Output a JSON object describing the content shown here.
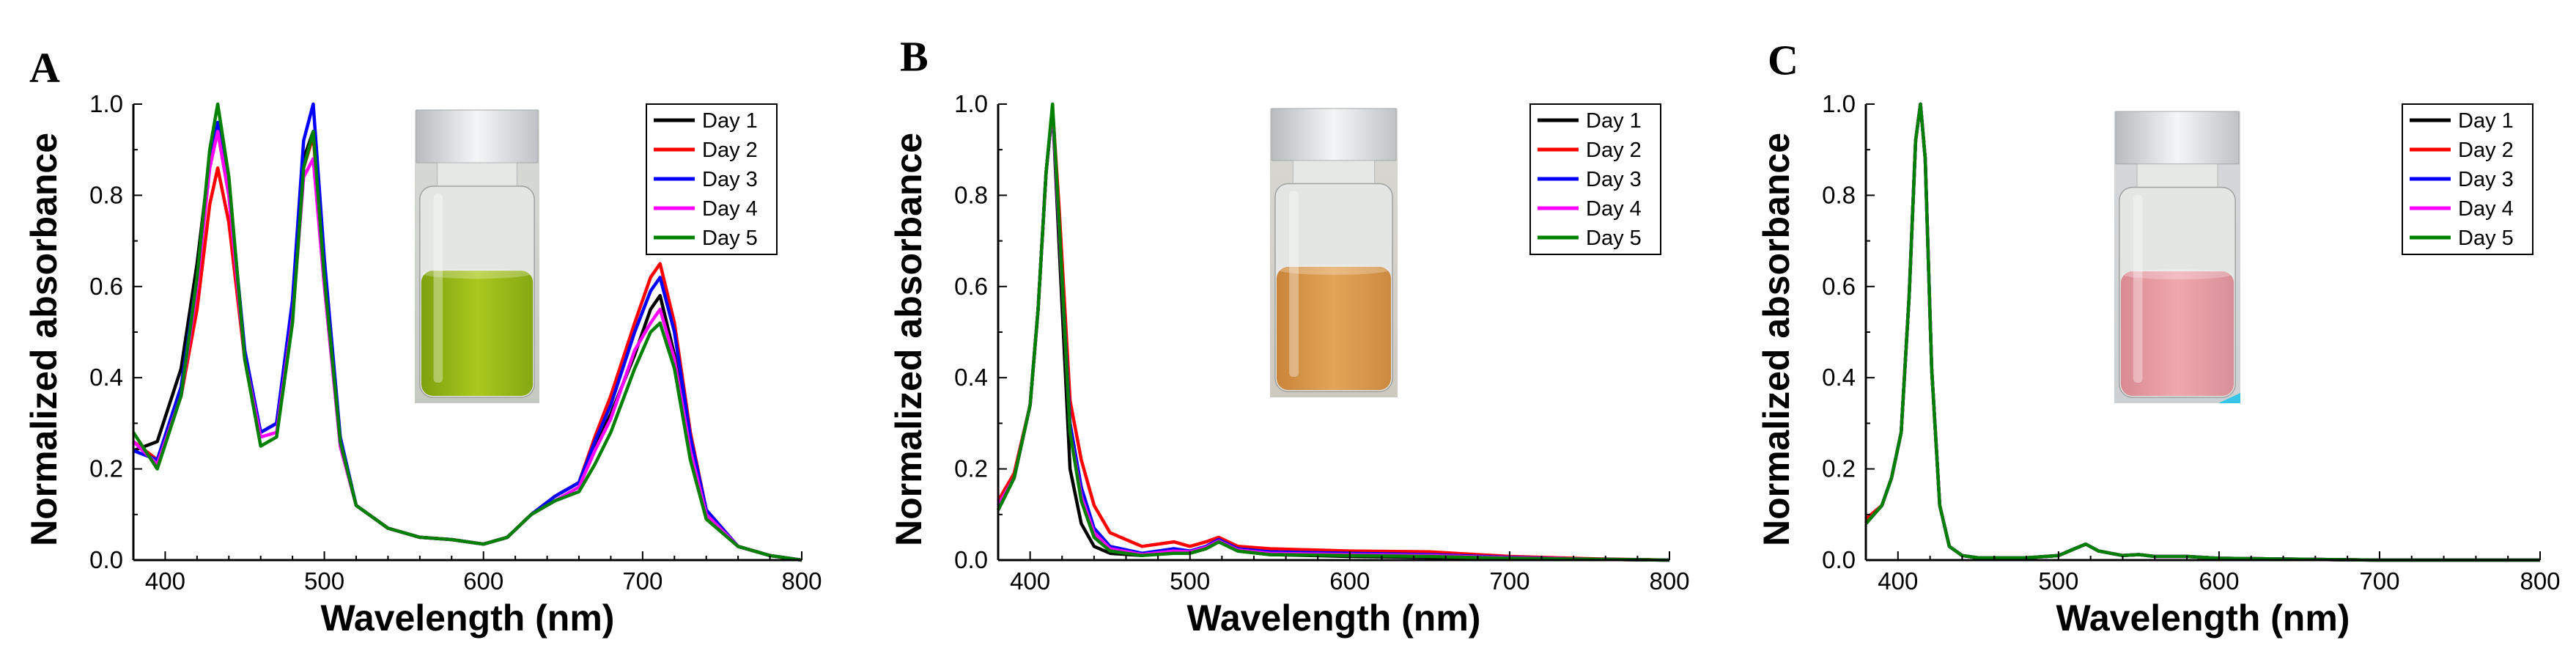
{
  "figure": {
    "colors": {
      "Day 1": "#000000",
      "Day 2": "#ff0000",
      "Day 3": "#0000ff",
      "Day 4": "#ff00ff",
      "Day 5": "#008000"
    }
  },
  "chart_data": [
    {
      "panel": "A",
      "type": "line",
      "xlabel": "Wavelength (nm)",
      "ylabel": "Normalized absorbance",
      "xlim": [
        380,
        800
      ],
      "ylim": [
        0.0,
        1.0
      ],
      "xticks": [
        400,
        500,
        600,
        700,
        800
      ],
      "yticks": [
        0.0,
        0.2,
        0.4,
        0.6,
        0.8,
        1.0
      ],
      "legend_position": "top-right",
      "inset": "vial-green",
      "series": [
        {
          "name": "Day 1",
          "x": [
            380,
            395,
            410,
            420,
            428,
            433,
            440,
            450,
            460,
            470,
            480,
            487,
            493,
            500,
            510,
            520,
            540,
            560,
            580,
            600,
            615,
            630,
            645,
            660,
            670,
            680,
            695,
            705,
            711,
            720,
            730,
            740,
            760,
            780,
            800
          ],
          "y": [
            0.24,
            0.26,
            0.42,
            0.65,
            0.88,
            0.94,
            0.8,
            0.45,
            0.28,
            0.3,
            0.55,
            0.88,
            0.94,
            0.62,
            0.26,
            0.12,
            0.07,
            0.05,
            0.045,
            0.035,
            0.05,
            0.1,
            0.14,
            0.17,
            0.25,
            0.32,
            0.45,
            0.55,
            0.58,
            0.45,
            0.24,
            0.1,
            0.03,
            0.01,
            0.0
          ]
        },
        {
          "name": "Day 2",
          "x": [
            380,
            395,
            410,
            420,
            428,
            433,
            440,
            450,
            460,
            470,
            480,
            487,
            493,
            500,
            510,
            520,
            540,
            560,
            580,
            600,
            615,
            630,
            645,
            660,
            670,
            680,
            695,
            705,
            711,
            720,
            730,
            740,
            760,
            780,
            800
          ],
          "y": [
            0.26,
            0.22,
            0.36,
            0.55,
            0.78,
            0.86,
            0.74,
            0.44,
            0.28,
            0.3,
            0.55,
            0.86,
            0.93,
            0.62,
            0.26,
            0.12,
            0.07,
            0.05,
            0.045,
            0.035,
            0.05,
            0.1,
            0.14,
            0.17,
            0.27,
            0.36,
            0.52,
            0.62,
            0.65,
            0.52,
            0.28,
            0.11,
            0.03,
            0.01,
            0.0
          ]
        },
        {
          "name": "Day 3",
          "x": [
            380,
            395,
            410,
            420,
            428,
            433,
            440,
            450,
            460,
            470,
            480,
            487,
            493,
            500,
            510,
            520,
            540,
            560,
            580,
            600,
            615,
            630,
            645,
            660,
            670,
            680,
            695,
            705,
            711,
            720,
            730,
            740,
            760,
            780,
            800
          ],
          "y": [
            0.24,
            0.22,
            0.38,
            0.62,
            0.88,
            0.96,
            0.82,
            0.46,
            0.28,
            0.3,
            0.57,
            0.92,
            1.0,
            0.66,
            0.27,
            0.12,
            0.07,
            0.05,
            0.045,
            0.035,
            0.05,
            0.1,
            0.14,
            0.17,
            0.26,
            0.34,
            0.5,
            0.59,
            0.62,
            0.5,
            0.27,
            0.11,
            0.03,
            0.01,
            0.0
          ]
        },
        {
          "name": "Day 4",
          "x": [
            380,
            395,
            410,
            420,
            428,
            433,
            440,
            450,
            460,
            470,
            480,
            487,
            493,
            500,
            510,
            520,
            540,
            560,
            580,
            600,
            615,
            630,
            645,
            660,
            670,
            680,
            695,
            705,
            711,
            720,
            730,
            740,
            760,
            780,
            800
          ],
          "y": [
            0.26,
            0.21,
            0.36,
            0.6,
            0.86,
            0.94,
            0.8,
            0.44,
            0.27,
            0.28,
            0.53,
            0.84,
            0.88,
            0.6,
            0.25,
            0.12,
            0.07,
            0.05,
            0.045,
            0.035,
            0.05,
            0.1,
            0.13,
            0.16,
            0.24,
            0.31,
            0.46,
            0.52,
            0.55,
            0.44,
            0.24,
            0.1,
            0.03,
            0.01,
            0.0
          ]
        },
        {
          "name": "Day 5",
          "x": [
            380,
            395,
            410,
            420,
            428,
            433,
            440,
            450,
            460,
            470,
            480,
            487,
            493,
            500,
            510,
            520,
            540,
            560,
            580,
            600,
            615,
            630,
            645,
            660,
            670,
            680,
            695,
            705,
            711,
            720,
            730,
            740,
            760,
            780,
            800
          ],
          "y": [
            0.28,
            0.2,
            0.36,
            0.62,
            0.9,
            1.0,
            0.84,
            0.44,
            0.25,
            0.27,
            0.52,
            0.86,
            0.94,
            0.62,
            0.26,
            0.12,
            0.07,
            0.05,
            0.045,
            0.035,
            0.05,
            0.1,
            0.13,
            0.15,
            0.21,
            0.28,
            0.42,
            0.5,
            0.52,
            0.42,
            0.22,
            0.09,
            0.03,
            0.01,
            0.0
          ]
        }
      ]
    },
    {
      "panel": "B",
      "type": "line",
      "xlabel": "Wavelength (nm)",
      "ylabel": "Normalized absorbance",
      "xlim": [
        380,
        800
      ],
      "ylim": [
        0.0,
        1.0
      ],
      "xticks": [
        400,
        500,
        600,
        700,
        800
      ],
      "yticks": [
        0.0,
        0.2,
        0.4,
        0.6,
        0.8,
        1.0
      ],
      "legend_position": "top-right",
      "inset": "vial-orange",
      "series": [
        {
          "name": "Day 1",
          "x": [
            380,
            390,
            400,
            405,
            410,
            414,
            418,
            425,
            432,
            440,
            450,
            470,
            490,
            500,
            510,
            518,
            530,
            550,
            600,
            650,
            700,
            750,
            800
          ],
          "y": [
            0.11,
            0.18,
            0.34,
            0.55,
            0.85,
            0.99,
            0.7,
            0.2,
            0.08,
            0.03,
            0.015,
            0.01,
            0.02,
            0.015,
            0.025,
            0.04,
            0.02,
            0.012,
            0.008,
            0.006,
            0.004,
            0.002,
            0.0
          ]
        },
        {
          "name": "Day 2",
          "x": [
            380,
            390,
            400,
            405,
            410,
            414,
            418,
            425,
            432,
            440,
            450,
            470,
            490,
            500,
            510,
            518,
            530,
            550,
            600,
            650,
            700,
            750,
            800
          ],
          "y": [
            0.13,
            0.19,
            0.34,
            0.55,
            0.85,
            0.99,
            0.78,
            0.35,
            0.22,
            0.12,
            0.06,
            0.03,
            0.04,
            0.03,
            0.04,
            0.05,
            0.03,
            0.025,
            0.02,
            0.018,
            0.008,
            0.003,
            0.0
          ]
        },
        {
          "name": "Day 3",
          "x": [
            380,
            390,
            400,
            405,
            410,
            414,
            418,
            425,
            432,
            440,
            450,
            470,
            490,
            500,
            510,
            518,
            530,
            550,
            600,
            650,
            700,
            750,
            800
          ],
          "y": [
            0.12,
            0.18,
            0.34,
            0.55,
            0.85,
            0.99,
            0.74,
            0.3,
            0.16,
            0.07,
            0.03,
            0.015,
            0.025,
            0.02,
            0.03,
            0.045,
            0.025,
            0.018,
            0.015,
            0.012,
            0.006,
            0.002,
            0.0
          ]
        },
        {
          "name": "Day 4",
          "x": [
            380,
            390,
            400,
            405,
            410,
            414,
            418,
            425,
            432,
            440,
            450,
            470,
            490,
            500,
            510,
            518,
            530,
            550,
            600,
            650,
            700,
            750,
            800
          ],
          "y": [
            0.12,
            0.18,
            0.34,
            0.55,
            0.85,
            0.99,
            0.74,
            0.28,
            0.14,
            0.06,
            0.025,
            0.012,
            0.02,
            0.018,
            0.028,
            0.042,
            0.022,
            0.015,
            0.012,
            0.01,
            0.005,
            0.002,
            0.0
          ]
        },
        {
          "name": "Day 5",
          "x": [
            380,
            390,
            400,
            405,
            410,
            414,
            418,
            425,
            432,
            440,
            450,
            470,
            490,
            500,
            510,
            518,
            530,
            550,
            600,
            650,
            700,
            750,
            800
          ],
          "y": [
            0.11,
            0.18,
            0.34,
            0.55,
            0.85,
            1.0,
            0.75,
            0.28,
            0.13,
            0.05,
            0.02,
            0.01,
            0.015,
            0.015,
            0.025,
            0.04,
            0.02,
            0.012,
            0.01,
            0.008,
            0.004,
            0.002,
            0.0
          ]
        }
      ]
    },
    {
      "panel": "C",
      "type": "line",
      "xlabel": "Wavelength (nm)",
      "ylabel": "Normalized absorbance",
      "xlim": [
        380,
        800
      ],
      "ylim": [
        0.0,
        1.0
      ],
      "xticks": [
        400,
        500,
        600,
        700,
        800
      ],
      "yticks": [
        0.0,
        0.2,
        0.4,
        0.6,
        0.8,
        1.0
      ],
      "legend_position": "top-right",
      "inset": "vial-pink",
      "series": [
        {
          "name": "Day 1",
          "x": [
            380,
            390,
            396,
            402,
            407,
            411,
            414,
            417,
            421,
            426,
            432,
            440,
            450,
            480,
            500,
            510,
            517,
            525,
            540,
            550,
            560,
            580,
            600,
            650,
            700,
            800
          ],
          "y": [
            0.08,
            0.12,
            0.18,
            0.28,
            0.58,
            0.92,
            1.0,
            0.88,
            0.42,
            0.12,
            0.03,
            0.01,
            0.005,
            0.005,
            0.01,
            0.025,
            0.035,
            0.02,
            0.01,
            0.012,
            0.008,
            0.008,
            0.004,
            0.002,
            0.0,
            0.0
          ]
        },
        {
          "name": "Day 2",
          "x": [
            380,
            390,
            396,
            402,
            407,
            411,
            414,
            417,
            421,
            426,
            432,
            440,
            450,
            480,
            500,
            510,
            517,
            525,
            540,
            550,
            560,
            580,
            600,
            650,
            700,
            800
          ],
          "y": [
            0.09,
            0.12,
            0.18,
            0.28,
            0.58,
            0.92,
            1.0,
            0.88,
            0.42,
            0.12,
            0.03,
            0.01,
            0.005,
            0.005,
            0.01,
            0.025,
            0.035,
            0.02,
            0.01,
            0.012,
            0.008,
            0.008,
            0.004,
            0.002,
            0.0,
            0.0
          ]
        },
        {
          "name": "Day 3",
          "x": [
            380,
            390,
            396,
            402,
            407,
            411,
            414,
            417,
            421,
            426,
            432,
            440,
            450,
            480,
            500,
            510,
            517,
            525,
            540,
            550,
            560,
            580,
            600,
            650,
            700,
            800
          ],
          "y": [
            0.08,
            0.12,
            0.18,
            0.28,
            0.58,
            0.92,
            1.0,
            0.88,
            0.42,
            0.12,
            0.03,
            0.01,
            0.005,
            0.005,
            0.01,
            0.025,
            0.035,
            0.02,
            0.01,
            0.012,
            0.008,
            0.008,
            0.004,
            0.002,
            0.0,
            0.0
          ]
        },
        {
          "name": "Day 4",
          "x": [
            380,
            390,
            396,
            402,
            407,
            411,
            414,
            417,
            421,
            426,
            432,
            440,
            450,
            480,
            500,
            510,
            517,
            525,
            540,
            550,
            560,
            580,
            600,
            650,
            700,
            800
          ],
          "y": [
            0.08,
            0.12,
            0.18,
            0.28,
            0.58,
            0.92,
            1.0,
            0.88,
            0.42,
            0.12,
            0.03,
            0.01,
            0.005,
            0.005,
            0.01,
            0.025,
            0.035,
            0.02,
            0.01,
            0.012,
            0.008,
            0.008,
            0.004,
            0.002,
            0.0,
            0.0
          ]
        },
        {
          "name": "Day 5",
          "x": [
            380,
            390,
            396,
            402,
            407,
            411,
            414,
            417,
            421,
            426,
            432,
            440,
            450,
            480,
            500,
            510,
            517,
            525,
            540,
            550,
            560,
            580,
            600,
            650,
            700,
            800
          ],
          "y": [
            0.08,
            0.12,
            0.18,
            0.28,
            0.58,
            0.92,
            1.0,
            0.88,
            0.42,
            0.12,
            0.03,
            0.01,
            0.005,
            0.005,
            0.01,
            0.025,
            0.035,
            0.02,
            0.01,
            0.012,
            0.008,
            0.008,
            0.004,
            0.002,
            0.0,
            0.0
          ]
        }
      ]
    }
  ]
}
